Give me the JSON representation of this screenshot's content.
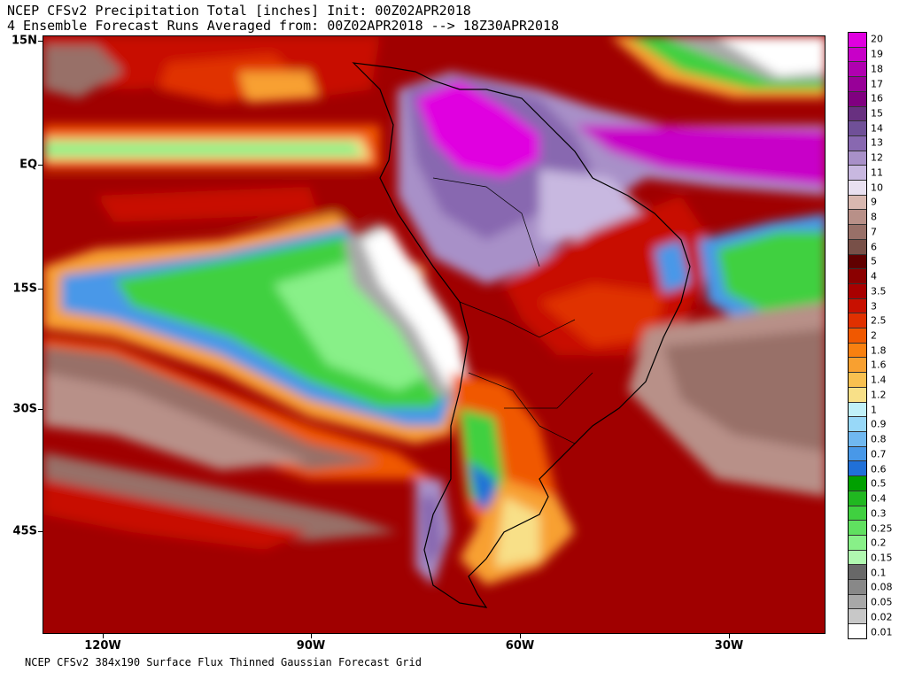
{
  "header": {
    "line1": "NCEP CFSv2 Precipitation Total [inches] Init: 00Z02APR2018",
    "line2": "4 Ensemble Forecast Runs Averaged from: 00Z02APR2018 --> 18Z30APR2018"
  },
  "footer": "NCEP CFSv2 384x190 Surface Flux Thinned Gaussian Forecast Grid",
  "axes": {
    "lat_labels": [
      "15N",
      "EQ",
      "15S",
      "30S",
      "45S"
    ],
    "lon_labels": [
      "120W",
      "90W",
      "60W",
      "30W"
    ]
  },
  "colorbar": {
    "labels": [
      "20",
      "19",
      "18",
      "17",
      "16",
      "15",
      "14",
      "13",
      "12",
      "11",
      "10",
      "9",
      "8",
      "7",
      "6",
      "5",
      "4",
      "3.5",
      "3",
      "2.5",
      "2",
      "1.8",
      "1.6",
      "1.4",
      "1.2",
      "1",
      "0.9",
      "0.8",
      "0.7",
      "0.6",
      "0.5",
      "0.4",
      "0.3",
      "0.25",
      "0.2",
      "0.15",
      "0.1",
      "0.08",
      "0.05",
      "0.02",
      "0.01"
    ],
    "colors": [
      "#e000e0",
      "#c800c8",
      "#b000b0",
      "#980098",
      "#800080",
      "#683080",
      "#705098",
      "#8868b0",
      "#a890c8",
      "#c8b8e0",
      "#e8e0f0",
      "#d8b8b0",
      "#b89088",
      "#987068",
      "#785048",
      "#600000",
      "#8b0000",
      "#a80000",
      "#c81000",
      "#e03000",
      "#f05800",
      "#f88010",
      "#f8a030",
      "#f8c050",
      "#f8e088",
      "#c0f0f8",
      "#98d8f8",
      "#70b8f0",
      "#4898e8",
      "#2070d8",
      "#00a000",
      "#20b820",
      "#40d040",
      "#60e060",
      "#88f088",
      "#b0f8b0",
      "#686868",
      "#888888",
      "#a8a8a8",
      "#c8c8c8",
      "#ffffff"
    ]
  }
}
